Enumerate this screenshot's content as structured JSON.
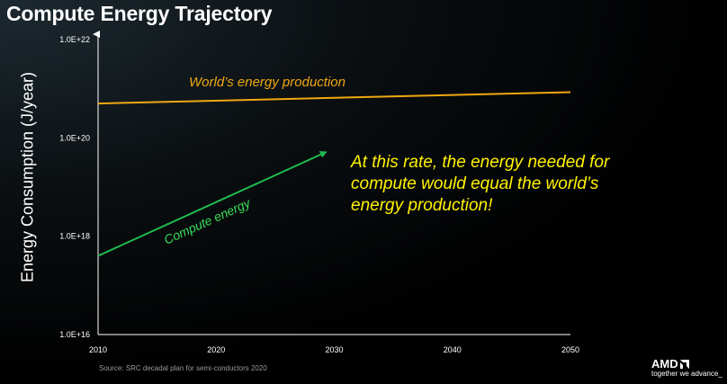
{
  "slide": {
    "title": "Compute Energy Trajectory",
    "source": "Source: SRC decadal plan for semi-conductors 2020",
    "annotation": "At this rate, the energy needed for compute would equal the world’s energy production!",
    "logo": {
      "brand": "AMD",
      "tagline": "together we advance_"
    }
  },
  "colors": {
    "background": "#000000",
    "world_series": "#f0a810",
    "compute_series": "#1fba4f",
    "compute_label": "#39e05a",
    "annotation": "#fff200"
  },
  "chart_data": {
    "type": "line",
    "title": "Compute Energy Trajectory",
    "xlabel": "",
    "ylabel": "Energy Consumption (J/year)",
    "yscale": "log",
    "xlim": [
      2010,
      2050
    ],
    "ylim_log10": [
      16,
      22
    ],
    "x_ticks": [
      "2010",
      "2020",
      "2030",
      "2040",
      "2050"
    ],
    "y_ticks": [
      {
        "label": "1.0E+16",
        "log10": 16
      },
      {
        "label": "1.0E+18",
        "log10": 18
      },
      {
        "label": "1.0E+20",
        "log10": 20
      },
      {
        "label": "1.0E+22",
        "log10": 22
      }
    ],
    "series": [
      {
        "name": "World’s energy production",
        "color": "#f0a810",
        "points": [
          {
            "x": 2010,
            "log10": 20.7
          },
          {
            "x": 2050,
            "log10": 20.93
          }
        ]
      },
      {
        "name": "Compute energy",
        "color": "#1fba4f",
        "arrow": true,
        "points": [
          {
            "x": 2010,
            "log10": 17.6
          },
          {
            "x": 2029.2,
            "log10": 19.7
          }
        ]
      }
    ],
    "source": "Source: SRC decadal plan for semi-conductors 2020"
  }
}
